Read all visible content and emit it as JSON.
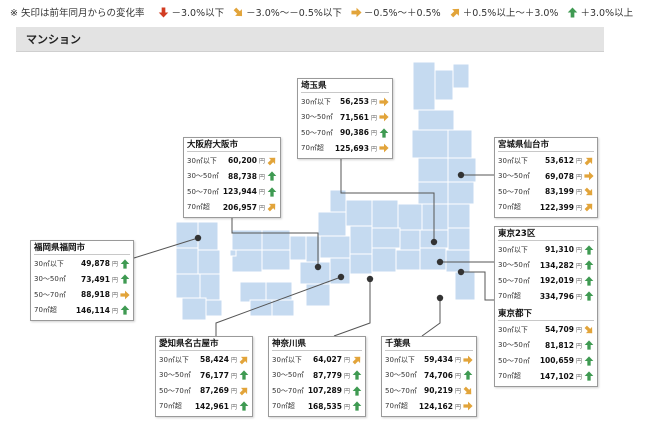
{
  "legend": {
    "note": "※ 矢印は前年同月からの変化率",
    "items": [
      {
        "icon": "arrow-down-red-icon",
        "type": "down",
        "label": "－3.0%以下"
      },
      {
        "icon": "arrow-down-right-icon",
        "type": "down-right",
        "label": "－3.0%～－0.5%以下"
      },
      {
        "icon": "arrow-right-icon",
        "type": "right",
        "label": "－0.5%～＋0.5%"
      },
      {
        "icon": "arrow-up-right-icon",
        "type": "up-right",
        "label": "＋0.5%以上～＋3.0%"
      },
      {
        "icon": "arrow-up-green-icon",
        "type": "up",
        "label": "＋3.0%以上"
      }
    ]
  },
  "section_title": "マンション",
  "colors": {
    "land": "#c5daf0",
    "grid": "#ffffff",
    "down": "#d23c22",
    "side": "#e2a43a",
    "up": "#3f9a52",
    "header_bg": "#e3e3e3"
  },
  "yen": "円",
  "regions": {
    "saitama": {
      "title": "埼玉県",
      "rows": [
        {
          "label": "30㎡以下",
          "value": "56,253",
          "trend": "right"
        },
        {
          "label": "30～50㎡",
          "value": "71,561",
          "trend": "right"
        },
        {
          "label": "50～70㎡",
          "value": "90,386",
          "trend": "up"
        },
        {
          "label": "70㎡超",
          "value": "125,693",
          "trend": "right"
        }
      ]
    },
    "osaka": {
      "title": "大阪府大阪市",
      "rows": [
        {
          "label": "30㎡以下",
          "value": "60,200",
          "trend": "up-right"
        },
        {
          "label": "30～50㎡",
          "value": "88,738",
          "trend": "up"
        },
        {
          "label": "50～70㎡",
          "value": "123,944",
          "trend": "up"
        },
        {
          "label": "70㎡超",
          "value": "206,957",
          "trend": "up-right"
        }
      ]
    },
    "sendai": {
      "title": "宮城県仙台市",
      "rows": [
        {
          "label": "30㎡以下",
          "value": "53,612",
          "trend": "up-right"
        },
        {
          "label": "30～50㎡",
          "value": "69,078",
          "trend": "right"
        },
        {
          "label": "50～70㎡",
          "value": "83,199",
          "trend": "down-right"
        },
        {
          "label": "70㎡超",
          "value": "122,399",
          "trend": "up-right"
        }
      ]
    },
    "fukuoka": {
      "title": "福岡県福岡市",
      "rows": [
        {
          "label": "30㎡以下",
          "value": "49,878",
          "trend": "up"
        },
        {
          "label": "30～50㎡",
          "value": "73,491",
          "trend": "up"
        },
        {
          "label": "50～70㎡",
          "value": "88,918",
          "trend": "right"
        },
        {
          "label": "70㎡超",
          "value": "146,114",
          "trend": "up"
        }
      ]
    },
    "tokyo23": {
      "title": "東京23区",
      "rows": [
        {
          "label": "30㎡以下",
          "value": "91,310",
          "trend": "up"
        },
        {
          "label": "30～50㎡",
          "value": "134,282",
          "trend": "up"
        },
        {
          "label": "50～70㎡",
          "value": "192,019",
          "trend": "up"
        },
        {
          "label": "70㎡超",
          "value": "334,796",
          "trend": "up"
        }
      ]
    },
    "tokyo_other": {
      "title": "東京都下",
      "rows": [
        {
          "label": "30㎡以下",
          "value": "54,709",
          "trend": "down-right"
        },
        {
          "label": "30～50㎡",
          "value": "81,812",
          "trend": "up"
        },
        {
          "label": "50～70㎡",
          "value": "100,659",
          "trend": "up"
        },
        {
          "label": "70㎡超",
          "value": "147,102",
          "trend": "up"
        }
      ]
    },
    "nagoya": {
      "title": "愛知県名古屋市",
      "rows": [
        {
          "label": "30㎡以下",
          "value": "58,424",
          "trend": "up-right"
        },
        {
          "label": "30～50㎡",
          "value": "76,177",
          "trend": "up"
        },
        {
          "label": "50～70㎡",
          "value": "87,269",
          "trend": "up-right"
        },
        {
          "label": "70㎡超",
          "value": "142,961",
          "trend": "up"
        }
      ]
    },
    "kanagawa": {
      "title": "神奈川県",
      "rows": [
        {
          "label": "30㎡以下",
          "value": "64,027",
          "trend": "up-right"
        },
        {
          "label": "30～50㎡",
          "value": "87,779",
          "trend": "up"
        },
        {
          "label": "50～70㎡",
          "value": "107,289",
          "trend": "up"
        },
        {
          "label": "70㎡超",
          "value": "168,535",
          "trend": "up"
        }
      ]
    },
    "chiba": {
      "title": "千葉県",
      "rows": [
        {
          "label": "30㎡以下",
          "value": "59,434",
          "trend": "right"
        },
        {
          "label": "30～50㎡",
          "value": "74,706",
          "trend": "up"
        },
        {
          "label": "50～70㎡",
          "value": "90,219",
          "trend": "down-right"
        },
        {
          "label": "70㎡超",
          "value": "124,162",
          "trend": "right"
        }
      ]
    }
  }
}
